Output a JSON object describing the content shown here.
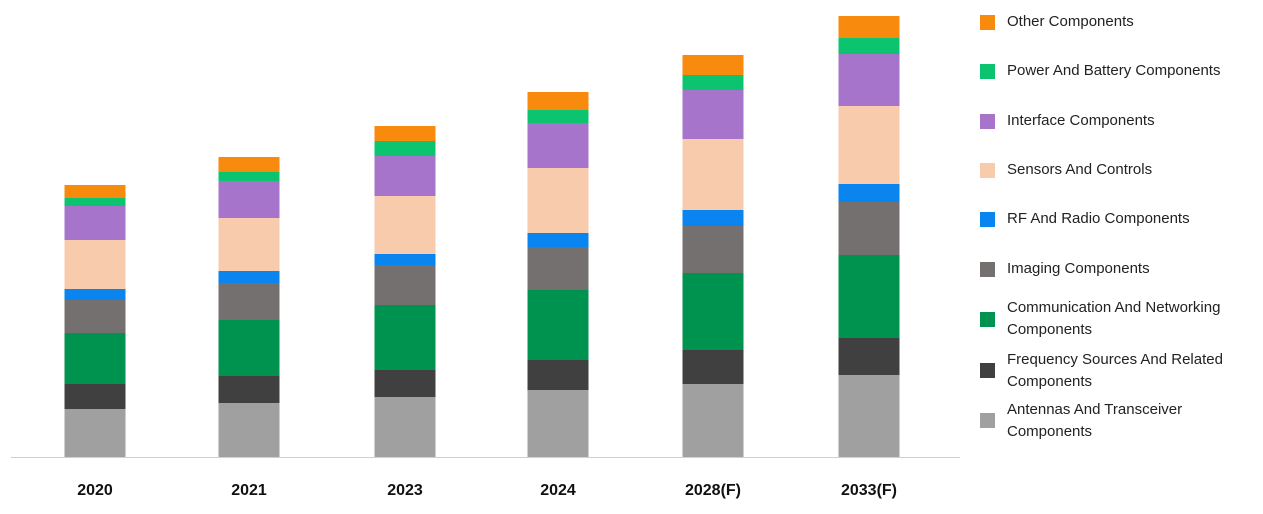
{
  "chart_data": {
    "type": "bar",
    "stacked": true,
    "categories": [
      "2020",
      "2021",
      "2023",
      "2024",
      "2028(F)",
      "2033(F)"
    ],
    "series": [
      {
        "name": "Antennas And Transceiver Components",
        "color": "#a0a0a0",
        "values": [
          48,
          54,
          60,
          67,
          73,
          82
        ]
      },
      {
        "name": "Frequency Sources And Related Components",
        "color": "#404040",
        "values": [
          25,
          27,
          27,
          30,
          34,
          37
        ]
      },
      {
        "name": "Communication And Networking Components",
        "color": "#00934f",
        "values": [
          51,
          56,
          65,
          70,
          77,
          83
        ]
      },
      {
        "name": "Imaging Components",
        "color": "#757070",
        "values": [
          33,
          37,
          40,
          43,
          47,
          53
        ]
      },
      {
        "name": "RF And Radio Components",
        "color": "#0a84ee",
        "values": [
          11,
          12,
          11,
          14,
          16,
          18
        ]
      },
      {
        "name": "Sensors And Controls",
        "color": "#f8cbad",
        "values": [
          49,
          53,
          58,
          65,
          71,
          78
        ]
      },
      {
        "name": "Interface Components",
        "color": "#a774cb",
        "values": [
          34,
          37,
          40,
          45,
          49,
          52
        ]
      },
      {
        "name": "Power And Battery Components",
        "color": "#0cc46f",
        "values": [
          8,
          9,
          15,
          13,
          15,
          16
        ]
      },
      {
        "name": "Other Components",
        "color": "#f88a0d",
        "values": [
          13,
          15,
          15,
          18,
          20,
          22
        ]
      }
    ],
    "ylim": [
      0,
      445
    ],
    "grid": false,
    "legend_position": "right"
  },
  "legend_order": [
    8,
    7,
    6,
    5,
    4,
    3,
    2,
    1,
    0
  ],
  "colors": {
    "axis": "#d0d0d0",
    "tick_label": "#111111"
  }
}
